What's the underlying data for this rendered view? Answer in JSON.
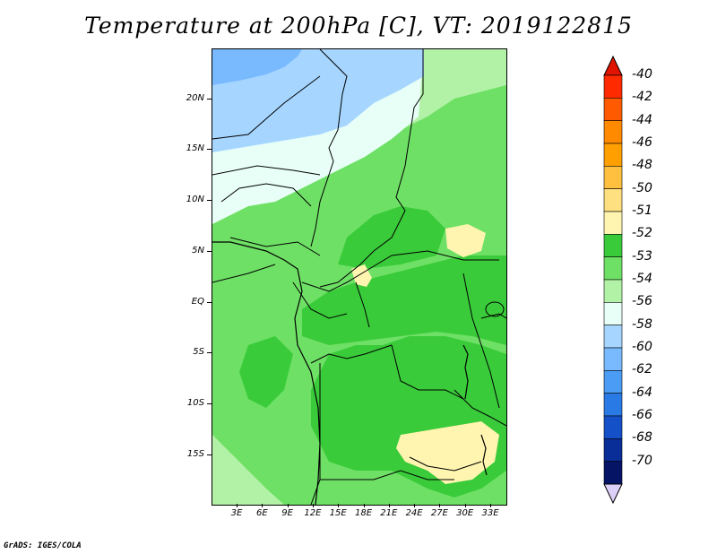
{
  "title": "Temperature at 200hPa [C], VT: 2019122815",
  "credit": "GrADS: IGES/COLA",
  "axes": {
    "lat_labels": [
      "20N",
      "15N",
      "10N",
      "5N",
      "EQ",
      "5S",
      "10S",
      "15S"
    ],
    "lon_labels": [
      "3E",
      "6E",
      "9E",
      "12E",
      "15E",
      "18E",
      "21E",
      "24E",
      "27E",
      "30E",
      "33E"
    ]
  },
  "colorbar": {
    "labels": [
      "-40",
      "-42",
      "-44",
      "-46",
      "-48",
      "-50",
      "-51",
      "-52",
      "-53",
      "-54",
      "-56",
      "-58",
      "-60",
      "-62",
      "-64",
      "-66",
      "-68",
      "-70"
    ],
    "colors": [
      "#ff2a00",
      "#ff5a00",
      "#ff8a00",
      "#ffa000",
      "#ffc040",
      "#ffe080",
      "#fff5b0",
      "#3acb3a",
      "#6fe066",
      "#b2f2a6",
      "#e8fff8",
      "#a6d6ff",
      "#79baff",
      "#4a9cf4",
      "#2a7ae6",
      "#1450c8",
      "#0a2e98",
      "#061466"
    ],
    "top_triangle": "#e01400",
    "bottom_triangle": "#dcd0f8"
  },
  "palette": {
    "c_56": "#a6d6ff",
    "c_58": "#79baff",
    "c_54": "#e8fff8",
    "c_53": "#b2f2a6",
    "c_52": "#6fe066",
    "c_51": "#3acb3a",
    "c_50": "#fff5b0"
  }
}
